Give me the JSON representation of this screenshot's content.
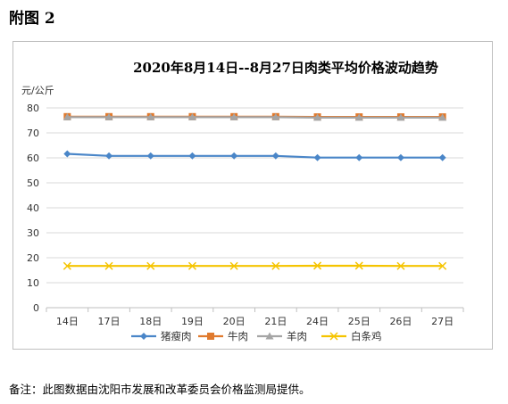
{
  "figure_label": "附图 2",
  "note": "备注：此图数据由沈阳市发展和改革委员会价格监测局提供。",
  "chart_data": {
    "type": "line",
    "title": "2020年8月14日--8月27日肉类平均价格波动趋势",
    "ylabel": "元/公斤",
    "xlabel": "",
    "categories": [
      "14日",
      "17日",
      "18日",
      "19日",
      "20日",
      "21日",
      "24日",
      "25日",
      "26日",
      "27日"
    ],
    "ylim": [
      0,
      80
    ],
    "yticks": [
      0,
      10,
      20,
      30,
      40,
      50,
      60,
      70,
      80
    ],
    "grid": true,
    "legend_position": "bottom",
    "series": [
      {
        "name": "猪瘦肉",
        "color": "#4a86c8",
        "marker": "diamond",
        "values": [
          61.6,
          60.8,
          60.8,
          60.8,
          60.8,
          60.8,
          60.1,
          60.1,
          60.1,
          60.1
        ]
      },
      {
        "name": "牛肉",
        "color": "#e07a2e",
        "marker": "square",
        "values": [
          76.5,
          76.5,
          76.5,
          76.5,
          76.5,
          76.5,
          76.4,
          76.4,
          76.4,
          76.4
        ]
      },
      {
        "name": "羊肉",
        "color": "#a5a5a5",
        "marker": "triangle",
        "values": [
          76.3,
          76.3,
          76.3,
          76.3,
          76.3,
          76.3,
          76.1,
          76.1,
          76.1,
          76.1
        ]
      },
      {
        "name": "白条鸡",
        "color": "#f5c400",
        "marker": "x",
        "values": [
          16.7,
          16.7,
          16.7,
          16.7,
          16.7,
          16.7,
          16.8,
          16.8,
          16.7,
          16.7
        ]
      }
    ]
  }
}
